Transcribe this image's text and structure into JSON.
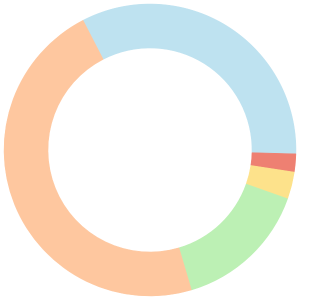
{
  "chart_data": {
    "type": "donut",
    "values": [
      33,
      2,
      3,
      15,
      47
    ],
    "colors": [
      "#bee2f0",
      "#ee8072",
      "#fde28b",
      "#bcf0b4",
      "#fec79f"
    ]
  }
}
